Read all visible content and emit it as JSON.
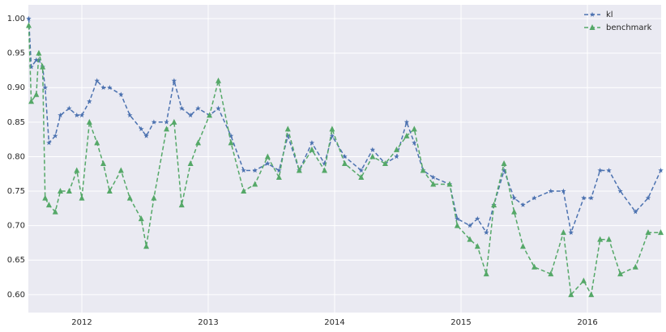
{
  "chart_data": {
    "type": "line",
    "x": [
      2011.58,
      2011.6,
      2011.64,
      2011.66,
      2011.69,
      2011.71,
      2011.74,
      2011.79,
      2011.83,
      2011.9,
      2011.96,
      2012.0,
      2012.06,
      2012.12,
      2012.17,
      2012.22,
      2012.31,
      2012.38,
      2012.47,
      2012.51,
      2012.57,
      2012.67,
      2012.73,
      2012.79,
      2012.86,
      2012.92,
      2013.01,
      2013.08,
      2013.18,
      2013.28,
      2013.37,
      2013.47,
      2013.56,
      2013.63,
      2013.72,
      2013.82,
      2013.92,
      2013.98,
      2014.08,
      2014.21,
      2014.3,
      2014.4,
      2014.49,
      2014.57,
      2014.63,
      2014.7,
      2014.78,
      2014.91,
      2014.97,
      2015.07,
      2015.13,
      2015.2,
      2015.26,
      2015.34,
      2015.42,
      2015.49,
      2015.58,
      2015.71,
      2015.81,
      2015.87,
      2015.97,
      2016.03,
      2016.1,
      2016.17,
      2016.26,
      2016.38,
      2016.48,
      2016.58
    ],
    "series": [
      {
        "name": "kl",
        "color": "#4c72b0",
        "marker": "star",
        "values": [
          1.0,
          0.93,
          0.94,
          0.94,
          0.93,
          0.9,
          0.82,
          0.83,
          0.86,
          0.87,
          0.86,
          0.86,
          0.88,
          0.91,
          0.9,
          0.9,
          0.89,
          0.86,
          0.84,
          0.83,
          0.85,
          0.85,
          0.91,
          0.87,
          0.86,
          0.87,
          0.86,
          0.87,
          0.83,
          0.78,
          0.78,
          0.79,
          0.78,
          0.83,
          0.78,
          0.82,
          0.79,
          0.83,
          0.8,
          0.78,
          0.81,
          0.79,
          0.8,
          0.85,
          0.82,
          0.78,
          0.77,
          0.76,
          0.71,
          0.7,
          0.71,
          0.69,
          0.73,
          0.78,
          0.74,
          0.73,
          0.74,
          0.75,
          0.75,
          0.69,
          0.74,
          0.74,
          0.78,
          0.78,
          0.75,
          0.72,
          0.74,
          0.78
        ]
      },
      {
        "name": "benchmark",
        "color": "#55a868",
        "marker": "triangle",
        "values": [
          0.99,
          0.88,
          0.89,
          0.95,
          0.93,
          0.74,
          0.73,
          0.72,
          0.75,
          0.75,
          0.78,
          0.74,
          0.85,
          0.82,
          0.79,
          0.75,
          0.78,
          0.74,
          0.71,
          0.67,
          0.74,
          0.84,
          0.85,
          0.73,
          0.79,
          0.82,
          0.86,
          0.91,
          0.82,
          0.75,
          0.76,
          0.8,
          0.77,
          0.84,
          0.78,
          0.81,
          0.78,
          0.84,
          0.79,
          0.77,
          0.8,
          0.79,
          0.81,
          0.83,
          0.84,
          0.78,
          0.76,
          0.76,
          0.7,
          0.68,
          0.67,
          0.63,
          0.73,
          0.79,
          0.72,
          0.67,
          0.64,
          0.63,
          0.69,
          0.6,
          0.62,
          0.6,
          0.68,
          0.68,
          0.63,
          0.64,
          0.69,
          0.69
        ]
      }
    ],
    "xlim": [
      2011.577,
      2016.583
    ],
    "xticks": [
      2012,
      2013,
      2014,
      2015,
      2016
    ],
    "ylim": [
      0.574,
      1.02
    ],
    "yticks": [
      {
        "value": 0.6,
        "label": "0.60"
      },
      {
        "value": 0.65,
        "label": "0.65"
      },
      {
        "value": 0.7,
        "label": "0.70"
      },
      {
        "value": 0.75,
        "label": "0.75"
      },
      {
        "value": 0.8,
        "label": "0.80"
      },
      {
        "value": 0.85,
        "label": "0.85"
      },
      {
        "value": 0.9,
        "label": "0.90"
      },
      {
        "value": 0.95,
        "label": "0.95"
      },
      {
        "value": 1.0,
        "label": "1.00"
      }
    ],
    "grid": true,
    "legend": "upper right"
  }
}
